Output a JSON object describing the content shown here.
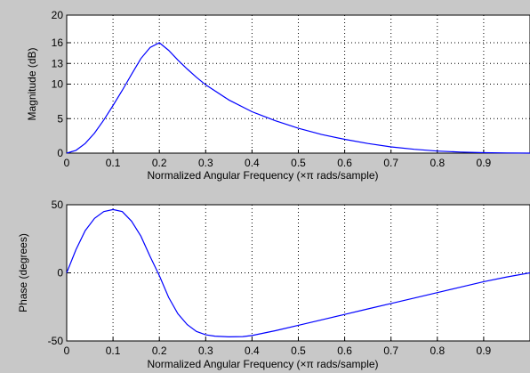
{
  "chart_data": [
    {
      "type": "line",
      "xlabel": "Normalized Angular Frequency  (×π rads/sample)",
      "ylabel": "Magnitude (dB)",
      "xlim": [
        0,
        1
      ],
      "ylim": [
        0,
        20
      ],
      "grid": true,
      "x_ticks": [
        "0",
        "0.1",
        "0.2",
        "0.3",
        "0.4",
        "0.5",
        "0.6",
        "0.7",
        "0.8",
        "0.9"
      ],
      "y_ticks": [
        "0",
        "5",
        "10",
        "13",
        "16",
        "20"
      ],
      "line_color": "#0000ff",
      "series": [
        {
          "x": [
            0,
            0.02,
            0.04,
            0.06,
            0.08,
            0.1,
            0.12,
            0.14,
            0.16,
            0.18,
            0.2,
            0.22,
            0.24,
            0.26,
            0.28,
            0.3,
            0.35,
            0.4,
            0.45,
            0.5,
            0.55,
            0.6,
            0.65,
            0.7,
            0.75,
            0.8,
            0.85,
            0.9,
            0.95,
            1.0
          ],
          "values": [
            0,
            0.4,
            1.4,
            2.9,
            4.8,
            6.9,
            9.1,
            11.4,
            13.7,
            15.3,
            16.0,
            14.9,
            13.5,
            12.2,
            11.0,
            9.9,
            7.7,
            6.0,
            4.7,
            3.6,
            2.7,
            2.0,
            1.4,
            0.9,
            0.55,
            0.3,
            0.15,
            0.06,
            0.02,
            0.0
          ]
        }
      ]
    },
    {
      "type": "line",
      "xlabel": "Normalized Angular Frequency  (×π rads/sample)",
      "ylabel": "Phase (degrees)",
      "xlim": [
        0,
        1
      ],
      "ylim": [
        -50,
        50
      ],
      "grid": true,
      "x_ticks": [
        "0",
        "0.1",
        "0.2",
        "0.3",
        "0.4",
        "0.5",
        "0.6",
        "0.7",
        "0.8",
        "0.9"
      ],
      "y_ticks": [
        "-50",
        "0",
        "50"
      ],
      "line_color": "#0000ff",
      "series": [
        {
          "x": [
            0,
            0.02,
            0.04,
            0.06,
            0.08,
            0.1,
            0.12,
            0.14,
            0.16,
            0.18,
            0.2,
            0.22,
            0.24,
            0.26,
            0.28,
            0.3,
            0.32,
            0.35,
            0.38,
            0.4,
            0.45,
            0.5,
            0.55,
            0.6,
            0.65,
            0.7,
            0.75,
            0.8,
            0.85,
            0.9,
            0.95,
            1.0
          ],
          "values": [
            0,
            17,
            31,
            40,
            45,
            46.5,
            45,
            38,
            27,
            12,
            -2,
            -18,
            -30,
            -38,
            -43,
            -45.5,
            -46.5,
            -47,
            -46.8,
            -46,
            -42.5,
            -38.5,
            -34.5,
            -30.5,
            -26.5,
            -22.5,
            -18.5,
            -14.5,
            -10.5,
            -6.5,
            -3,
            0
          ]
        }
      ]
    }
  ]
}
